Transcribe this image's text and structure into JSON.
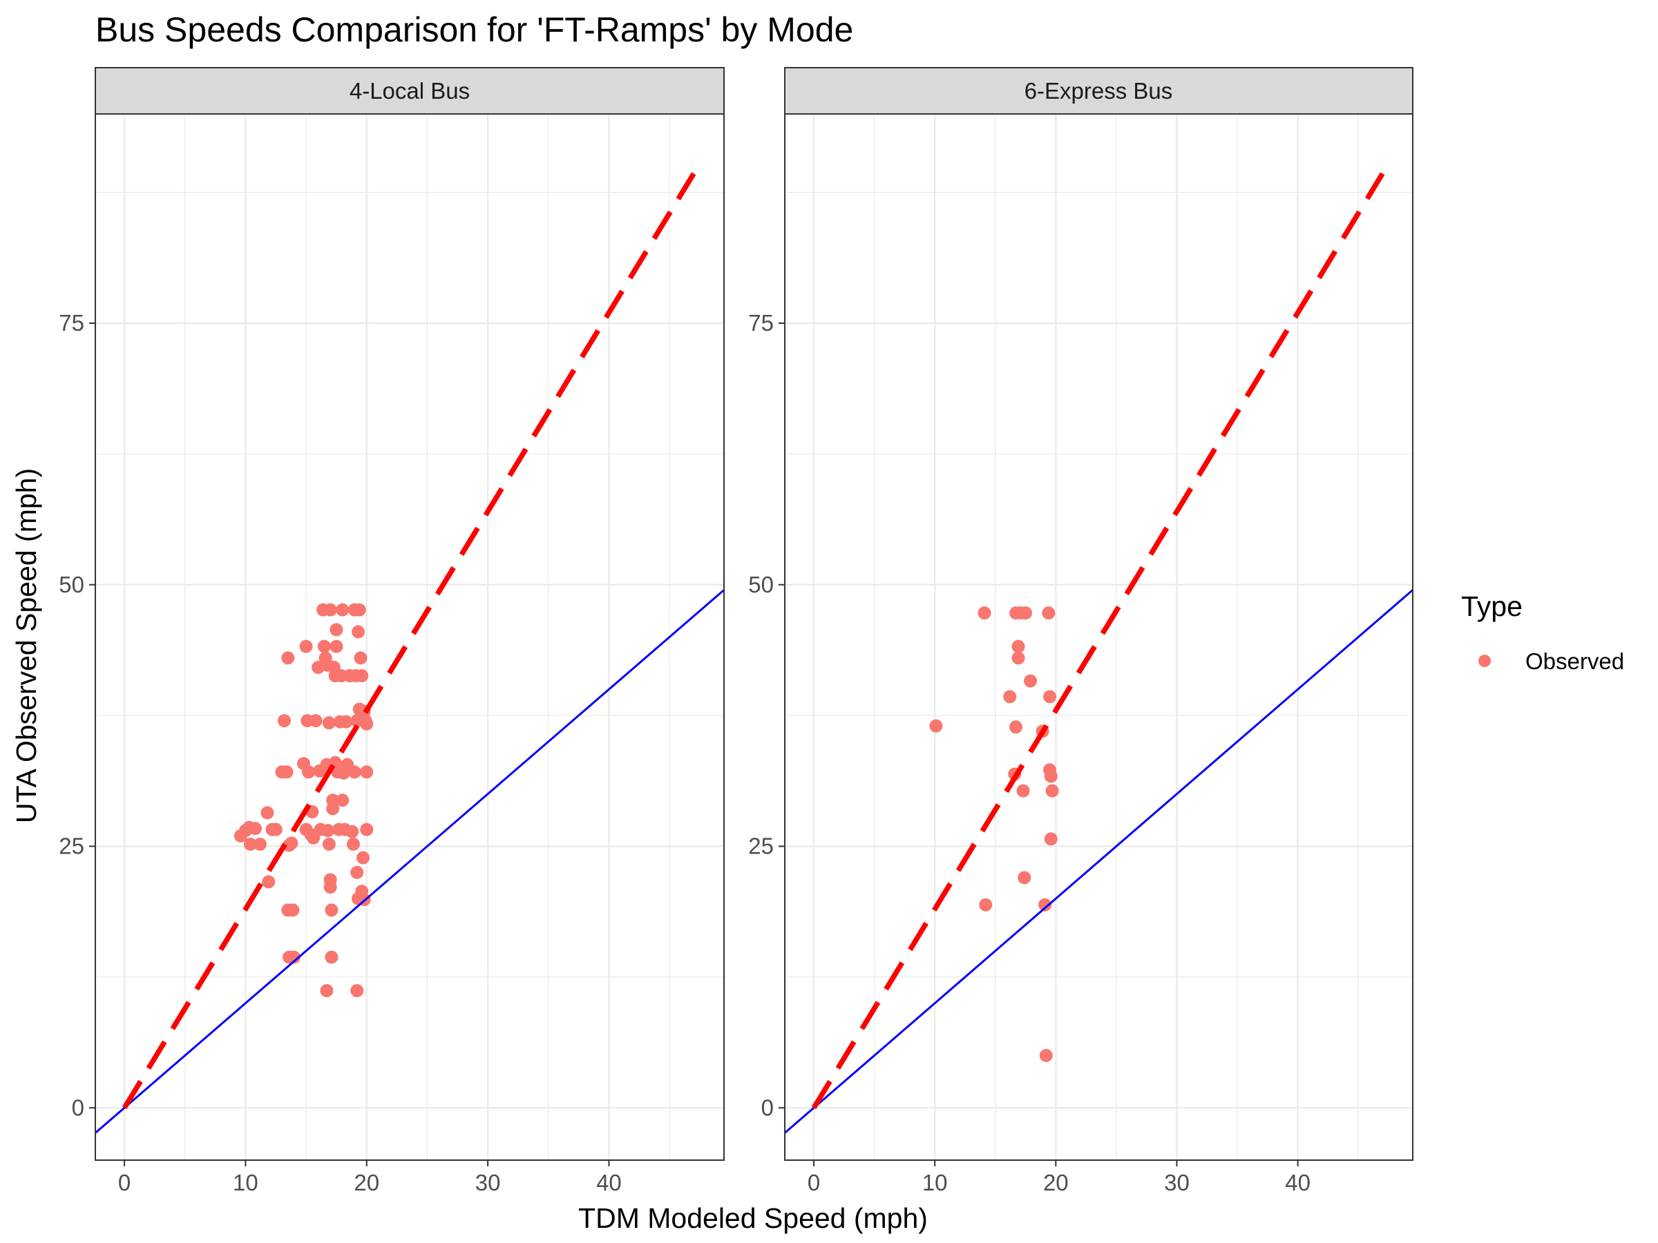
{
  "chart_data": {
    "type": "scatter",
    "title": "Bus Speeds Comparison for 'FT-Ramps' by Mode",
    "xlabel": "TDM Modeled Speed (mph)",
    "ylabel": "UTA Observed Speed (mph)",
    "xlim": [
      -2.4,
      49.5
    ],
    "ylim": [
      -5.0,
      95.0
    ],
    "x_ticks": [
      0,
      10,
      20,
      30,
      40
    ],
    "y_ticks": [
      0,
      25,
      50,
      75
    ],
    "grid": true,
    "legend": {
      "title": "Type",
      "position": "right",
      "entries": [
        {
          "label": "Observed",
          "color": "#F8766D"
        }
      ]
    },
    "reference_lines": [
      {
        "slope": 1,
        "intercept": 0,
        "color": "#0000FF",
        "style": "solid"
      },
      {
        "slope": 1.9,
        "intercept": 0,
        "x_range": [
          0,
          47
        ],
        "color": "#FF0000",
        "style": "dashed"
      }
    ],
    "panels": [
      {
        "label": "4-Local Bus",
        "points": [
          [
            9.6,
            26.0
          ],
          [
            10.0,
            26.5
          ],
          [
            10.3,
            26.8
          ],
          [
            10.4,
            25.2
          ],
          [
            10.8,
            26.7
          ],
          [
            11.2,
            25.2
          ],
          [
            11.8,
            28.2
          ],
          [
            11.9,
            21.6
          ],
          [
            12.2,
            26.6
          ],
          [
            12.5,
            26.6
          ],
          [
            13.0,
            32.1
          ],
          [
            13.2,
            37.0
          ],
          [
            13.4,
            32.1
          ],
          [
            13.5,
            43.0
          ],
          [
            13.5,
            18.9
          ],
          [
            13.6,
            14.4
          ],
          [
            13.6,
            25.1
          ],
          [
            13.8,
            25.3
          ],
          [
            13.9,
            18.9
          ],
          [
            14.0,
            14.4
          ],
          [
            14.8,
            32.9
          ],
          [
            15.0,
            44.1
          ],
          [
            15.0,
            26.6
          ],
          [
            15.1,
            37.0
          ],
          [
            15.2,
            32.1
          ],
          [
            15.4,
            26.1
          ],
          [
            15.5,
            28.3
          ],
          [
            15.6,
            25.8
          ],
          [
            15.8,
            37.0
          ],
          [
            16.0,
            42.1
          ],
          [
            16.1,
            32.2
          ],
          [
            16.2,
            26.6
          ],
          [
            16.4,
            47.6
          ],
          [
            16.5,
            44.1
          ],
          [
            16.6,
            43.0
          ],
          [
            16.7,
            11.2
          ],
          [
            16.7,
            32.8
          ],
          [
            16.8,
            26.5
          ],
          [
            16.8,
            42.3
          ],
          [
            16.9,
            25.2
          ],
          [
            16.9,
            36.8
          ],
          [
            17.0,
            47.6
          ],
          [
            17.0,
            21.8
          ],
          [
            17.0,
            21.1
          ],
          [
            17.1,
            18.9
          ],
          [
            17.1,
            14.4
          ],
          [
            17.2,
            29.4
          ],
          [
            17.2,
            28.6
          ],
          [
            17.3,
            42.1
          ],
          [
            17.4,
            41.3
          ],
          [
            17.4,
            33.0
          ],
          [
            17.5,
            45.7
          ],
          [
            17.5,
            44.1
          ],
          [
            17.6,
            32.1
          ],
          [
            17.7,
            26.6
          ],
          [
            17.8,
            36.9
          ],
          [
            17.9,
            41.3
          ],
          [
            18.0,
            47.6
          ],
          [
            18.0,
            29.4
          ],
          [
            18.1,
            32.0
          ],
          [
            18.2,
            26.6
          ],
          [
            18.3,
            36.9
          ],
          [
            18.4,
            32.8
          ],
          [
            18.6,
            41.3
          ],
          [
            18.8,
            26.4
          ],
          [
            18.9,
            25.2
          ],
          [
            19.0,
            47.6
          ],
          [
            19.0,
            32.1
          ],
          [
            19.1,
            41.3
          ],
          [
            19.2,
            22.5
          ],
          [
            19.2,
            11.2
          ],
          [
            19.2,
            37.0
          ],
          [
            19.3,
            45.5
          ],
          [
            19.3,
            20.0
          ],
          [
            19.4,
            47.6
          ],
          [
            19.4,
            38.1
          ],
          [
            19.5,
            43.0
          ],
          [
            19.6,
            41.3
          ],
          [
            19.6,
            20.7
          ],
          [
            19.7,
            23.9
          ],
          [
            19.8,
            37.9
          ],
          [
            19.8,
            19.9
          ],
          [
            19.9,
            37.0
          ],
          [
            20.0,
            32.1
          ],
          [
            20.0,
            26.6
          ],
          [
            20.0,
            36.7
          ]
        ]
      },
      {
        "label": "6-Express Bus",
        "points": [
          [
            10.1,
            36.5
          ],
          [
            14.1,
            47.3
          ],
          [
            14.2,
            19.4
          ],
          [
            16.2,
            39.3
          ],
          [
            16.6,
            31.9
          ],
          [
            16.7,
            36.4
          ],
          [
            16.7,
            47.3
          ],
          [
            16.9,
            44.1
          ],
          [
            16.9,
            43.0
          ],
          [
            17.1,
            47.3
          ],
          [
            17.3,
            30.3
          ],
          [
            17.4,
            22.0
          ],
          [
            17.5,
            47.3
          ],
          [
            17.9,
            40.8
          ],
          [
            18.9,
            36.0
          ],
          [
            19.1,
            19.4
          ],
          [
            19.2,
            5.0
          ],
          [
            19.4,
            47.3
          ],
          [
            19.5,
            39.3
          ],
          [
            19.5,
            32.3
          ],
          [
            19.6,
            31.7
          ],
          [
            19.6,
            25.7
          ],
          [
            19.7,
            30.3
          ]
        ]
      }
    ]
  }
}
